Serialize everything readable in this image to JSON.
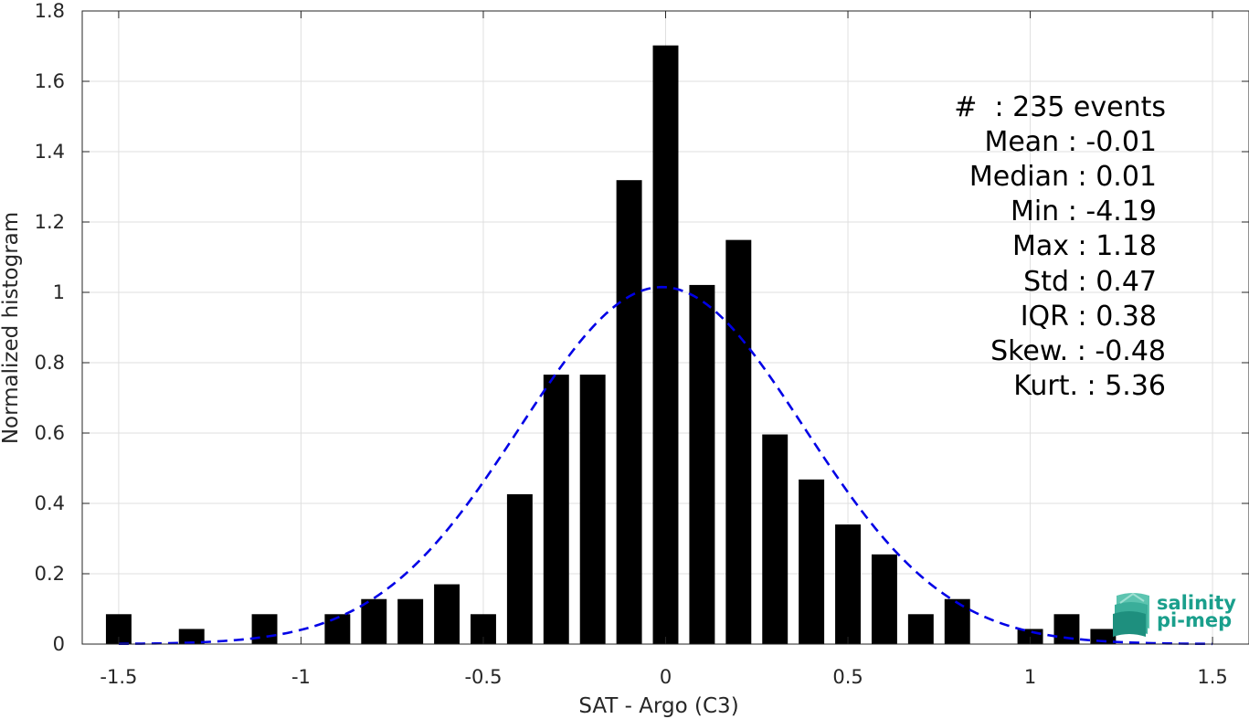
{
  "chart_data": {
    "type": "bar",
    "xlabel": "SAT - Argo (C3)",
    "ylabel": "Normalized histogram",
    "xlim": [
      -1.6,
      1.6
    ],
    "ylim": [
      0,
      1.8
    ],
    "xticks": [
      -1.5,
      -1,
      -0.5,
      0,
      0.5,
      1,
      1.5
    ],
    "xtick_labels": [
      "-1.5",
      "-1",
      "-0.5",
      "0",
      "0.5",
      "1",
      "1.5"
    ],
    "yticks": [
      0,
      0.2,
      0.4,
      0.6,
      0.8,
      1,
      1.2,
      1.4,
      1.6,
      1.8
    ],
    "ytick_labels": [
      "0",
      "0.2",
      "0.4",
      "0.6",
      "0.8",
      "1",
      "1.2",
      "1.4",
      "1.6",
      "1.8"
    ],
    "grid": true,
    "bar_width": 0.07,
    "bar_color": "#000000",
    "bars": [
      {
        "x": -1.5,
        "y": 0.085
      },
      {
        "x": -1.3,
        "y": 0.043
      },
      {
        "x": -1.1,
        "y": 0.085
      },
      {
        "x": -0.9,
        "y": 0.085
      },
      {
        "x": -0.8,
        "y": 0.128
      },
      {
        "x": -0.7,
        "y": 0.128
      },
      {
        "x": -0.6,
        "y": 0.17
      },
      {
        "x": -0.5,
        "y": 0.085
      },
      {
        "x": -0.4,
        "y": 0.426
      },
      {
        "x": -0.3,
        "y": 0.766
      },
      {
        "x": -0.2,
        "y": 0.766
      },
      {
        "x": -0.1,
        "y": 1.319
      },
      {
        "x": 0.0,
        "y": 1.702
      },
      {
        "x": 0.1,
        "y": 1.021
      },
      {
        "x": 0.2,
        "y": 1.149
      },
      {
        "x": 0.3,
        "y": 0.596
      },
      {
        "x": 0.4,
        "y": 0.468
      },
      {
        "x": 0.5,
        "y": 0.34
      },
      {
        "x": 0.6,
        "y": 0.255
      },
      {
        "x": 0.7,
        "y": 0.085
      },
      {
        "x": 0.8,
        "y": 0.128
      },
      {
        "x": 1.0,
        "y": 0.043
      },
      {
        "x": 1.1,
        "y": 0.085
      },
      {
        "x": 1.2,
        "y": 0.043
      }
    ],
    "fit_curve": {
      "style": "dashed",
      "color": "#0000e6",
      "x_range": [
        -1.5,
        1.5
      ],
      "mean": -0.01,
      "std": 0.39,
      "peak": 1.015
    },
    "annotations": [
      "#  : 235 events",
      "Mean : -0.01",
      "Median : 0.01",
      "Min : -4.19",
      "Max : 1.18",
      "Std : 0.47",
      "IQR : 0.38",
      "Skew. : -0.48",
      "Kurt. : 5.36"
    ]
  },
  "logo": {
    "line1": "salinity",
    "line2": "pi-mep",
    "color": "#1a9f8c"
  }
}
